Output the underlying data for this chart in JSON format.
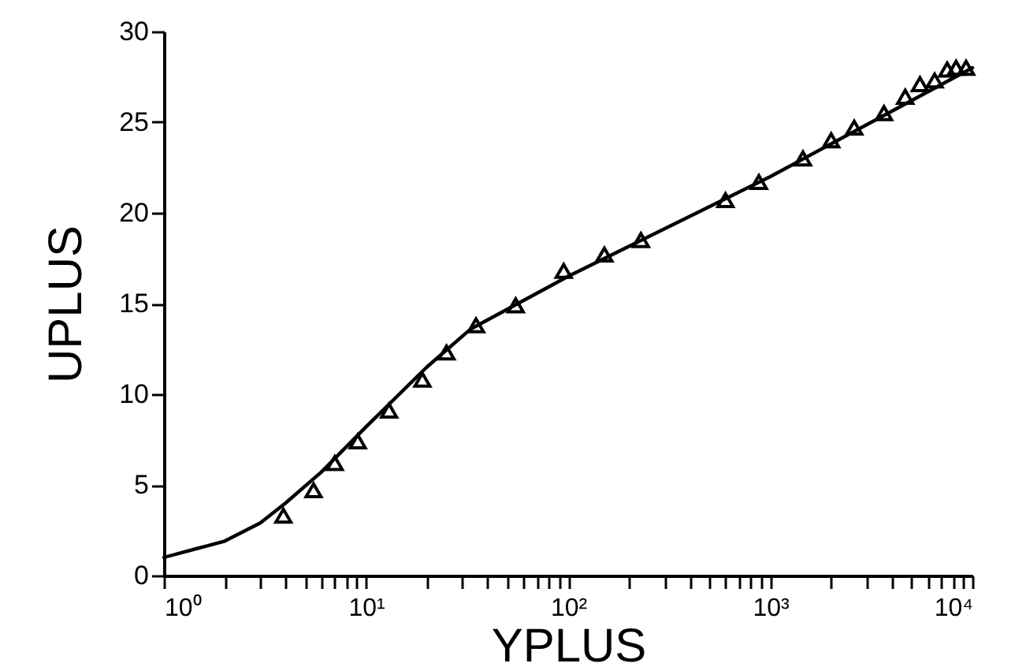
{
  "chart_data": {
    "type": "line",
    "xlabel": "YPLUS",
    "ylabel": "UPLUS",
    "log": "x",
    "grid": false,
    "xlim": [
      1,
      10000
    ],
    "ylim": [
      0,
      30
    ],
    "yticks": [
      0,
      5,
      10,
      15,
      20,
      25,
      30
    ],
    "xticks": [
      {
        "value": 1,
        "label": "10⁰"
      },
      {
        "value": 2,
        "label": null
      },
      {
        "value": 3,
        "label": null
      },
      {
        "value": 4,
        "label": null
      },
      {
        "value": 5,
        "label": null
      },
      {
        "value": 6,
        "label": null
      },
      {
        "value": 7,
        "label": null
      },
      {
        "value": 8,
        "label": null
      },
      {
        "value": 9,
        "label": null
      },
      {
        "value": 10,
        "label": "10¹"
      },
      {
        "value": 20,
        "label": null
      },
      {
        "value": 30,
        "label": null
      },
      {
        "value": 40,
        "label": null
      },
      {
        "value": 50,
        "label": null
      },
      {
        "value": 60,
        "label": null
      },
      {
        "value": 70,
        "label": null
      },
      {
        "value": 80,
        "label": null
      },
      {
        "value": 90,
        "label": null
      },
      {
        "value": 100,
        "label": "10²"
      },
      {
        "value": 200,
        "label": null
      },
      {
        "value": 300,
        "label": null
      },
      {
        "value": 400,
        "label": null
      },
      {
        "value": 500,
        "label": null
      },
      {
        "value": 600,
        "label": null
      },
      {
        "value": 700,
        "label": null
      },
      {
        "value": 800,
        "label": null
      },
      {
        "value": 900,
        "label": null
      },
      {
        "value": 1000,
        "label": "10³"
      },
      {
        "value": 2000,
        "label": null
      },
      {
        "value": 3000,
        "label": null
      },
      {
        "value": 4000,
        "label": null
      },
      {
        "value": 5000,
        "label": null
      },
      {
        "value": 6000,
        "label": null
      },
      {
        "value": 7000,
        "label": null
      },
      {
        "value": 8000,
        "label": null
      },
      {
        "value": 9000,
        "label": null
      },
      {
        "value": 10000,
        "label": "10⁴"
      }
    ],
    "series": [
      {
        "color": "#000000",
        "line_style": "solid",
        "x": [
          1,
          2,
          3,
          4,
          6,
          10,
          20,
          33,
          100,
          1000,
          10000
        ],
        "values": [
          1.0,
          1.9,
          2.9,
          4.0,
          5.7,
          8.2,
          11.5,
          13.6,
          16.5,
          22.0,
          28.0
        ]
      },
      {
        "type": "scatter",
        "color": "#000000",
        "marker": "triangle",
        "x": [
          3.9,
          5.5,
          7.0,
          9.1,
          13,
          19,
          25,
          35,
          55,
          95,
          151,
          229,
          600,
          878,
          1450,
          2000,
          2600,
          3650,
          4650,
          5500,
          6500,
          7500,
          8300,
          9300
        ],
        "values": [
          3.3,
          4.7,
          6.2,
          7.4,
          9.1,
          10.8,
          12.3,
          13.8,
          14.9,
          16.8,
          17.7,
          18.5,
          20.7,
          21.7,
          23.0,
          24.0,
          24.7,
          25.5,
          26.4,
          27.1,
          27.3,
          27.9,
          28.0,
          28.0
        ]
      }
    ]
  }
}
